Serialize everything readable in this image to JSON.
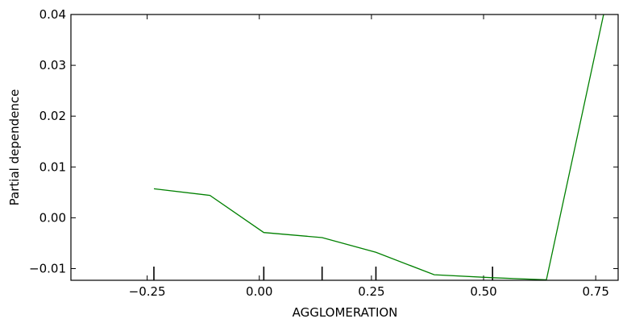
{
  "chart_data": {
    "type": "line",
    "title": "",
    "xlabel": "AGGLOMERATION",
    "ylabel": "Partial dependence",
    "xlim": [
      -0.42,
      0.8
    ],
    "ylim": [
      -0.0123,
      0.04
    ],
    "xticks": [
      -0.25,
      0,
      0.25,
      0.5,
      0.75
    ],
    "xtick_labels": [
      "−0.25",
      "0.00",
      "0.25",
      "0.50",
      "0.75"
    ],
    "yticks": [
      -0.01,
      0,
      0.01,
      0.02,
      0.03,
      0.04
    ],
    "ytick_labels": [
      "−0.01",
      "0.00",
      "0.01",
      "0.02",
      "0.03",
      "0.04"
    ],
    "grid": false,
    "series": [
      {
        "color": "#008000",
        "x": [
          -0.235,
          -0.11,
          0.01,
          0.14,
          0.26,
          0.39,
          0.52,
          0.64,
          0.77
        ],
        "y": [
          0.0057,
          0.0044,
          -0.0029,
          -0.0039,
          -0.0068,
          -0.0112,
          -0.0118,
          -0.0122,
          0.041
        ]
      }
    ],
    "rug_x": [
      -0.235,
      0.01,
      0.14,
      0.26,
      0.52
    ]
  }
}
